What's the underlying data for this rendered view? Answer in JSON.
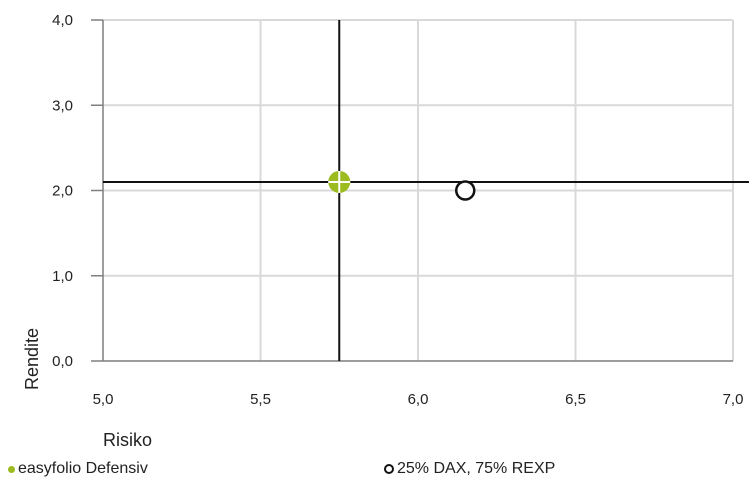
{
  "chart_data": {
    "type": "scatter",
    "title": "",
    "xlabel": "Risiko",
    "ylabel": "Rendite",
    "xlim": [
      5.0,
      7.0
    ],
    "ylim": [
      0.0,
      4.0
    ],
    "x_ticks": [
      "5,0",
      "5,5",
      "6,0",
      "6,5",
      "7,0"
    ],
    "y_ticks": [
      "0,0",
      "1,0",
      "2,0",
      "3,0",
      "4,0"
    ],
    "grid": true,
    "legend_position": "bottom",
    "crosshair": {
      "x": 5.75,
      "y": 2.1
    },
    "series": [
      {
        "name": "easyfolio Defensiv",
        "color": "#9bbb1f",
        "marker": "filled",
        "x": [
          5.75
        ],
        "y": [
          2.1
        ]
      },
      {
        "name": "25% DAX, 75% REXP",
        "color": "#111111",
        "marker": "ring",
        "x": [
          6.15
        ],
        "y": [
          2.0
        ]
      }
    ]
  }
}
